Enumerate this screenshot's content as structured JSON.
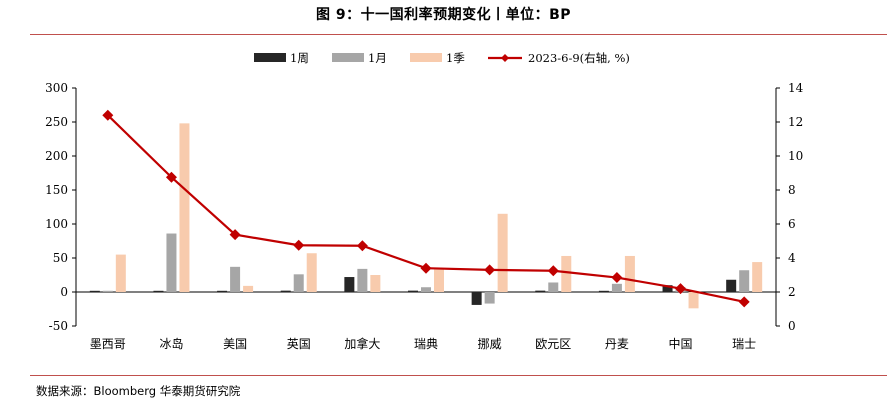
{
  "header": {
    "title": "图 9：十一国利率预期变化丨单位：BP"
  },
  "footer": {
    "source": "数据来源：Bloomberg 华泰期货研究院"
  },
  "chart_data": {
    "type": "bar",
    "categories": [
      "墨西哥",
      "冰岛",
      "美国",
      "英国",
      "加拿大",
      "瑞典",
      "挪威",
      "欧元区",
      "丹麦",
      "中国",
      "瑞士"
    ],
    "series": [
      {
        "name": "1周",
        "type": "bar",
        "axis": "left",
        "color": "#262626",
        "values": [
          0,
          0,
          0,
          2,
          22,
          2,
          -19,
          2,
          0,
          10,
          18
        ]
      },
      {
        "name": "1月",
        "type": "bar",
        "axis": "left",
        "color": "#a6a6a6",
        "values": [
          1,
          86,
          37,
          26,
          34,
          7,
          -17,
          14,
          12,
          7,
          32
        ]
      },
      {
        "name": "1季",
        "type": "bar",
        "axis": "left",
        "color": "#f8cbad",
        "values": [
          55,
          248,
          9,
          57,
          25,
          33,
          115,
          53,
          53,
          -24,
          44
        ]
      },
      {
        "name": "2023-6-9(右轴, %)",
        "type": "line",
        "axis": "right",
        "color": "#c00000",
        "values": [
          12.4,
          8.75,
          5.375,
          4.75,
          4.72,
          3.4,
          3.3,
          3.25,
          2.85,
          2.2,
          1.42
        ]
      }
    ],
    "y_left": {
      "min": -50,
      "max": 300,
      "ticks": [
        -50,
        0,
        50,
        100,
        150,
        200,
        250,
        300
      ]
    },
    "y_right": {
      "min": 0,
      "max": 14,
      "ticks": [
        0,
        2,
        4,
        6,
        8,
        10,
        12,
        14
      ]
    },
    "legend_position": "top-center",
    "grid": false
  }
}
